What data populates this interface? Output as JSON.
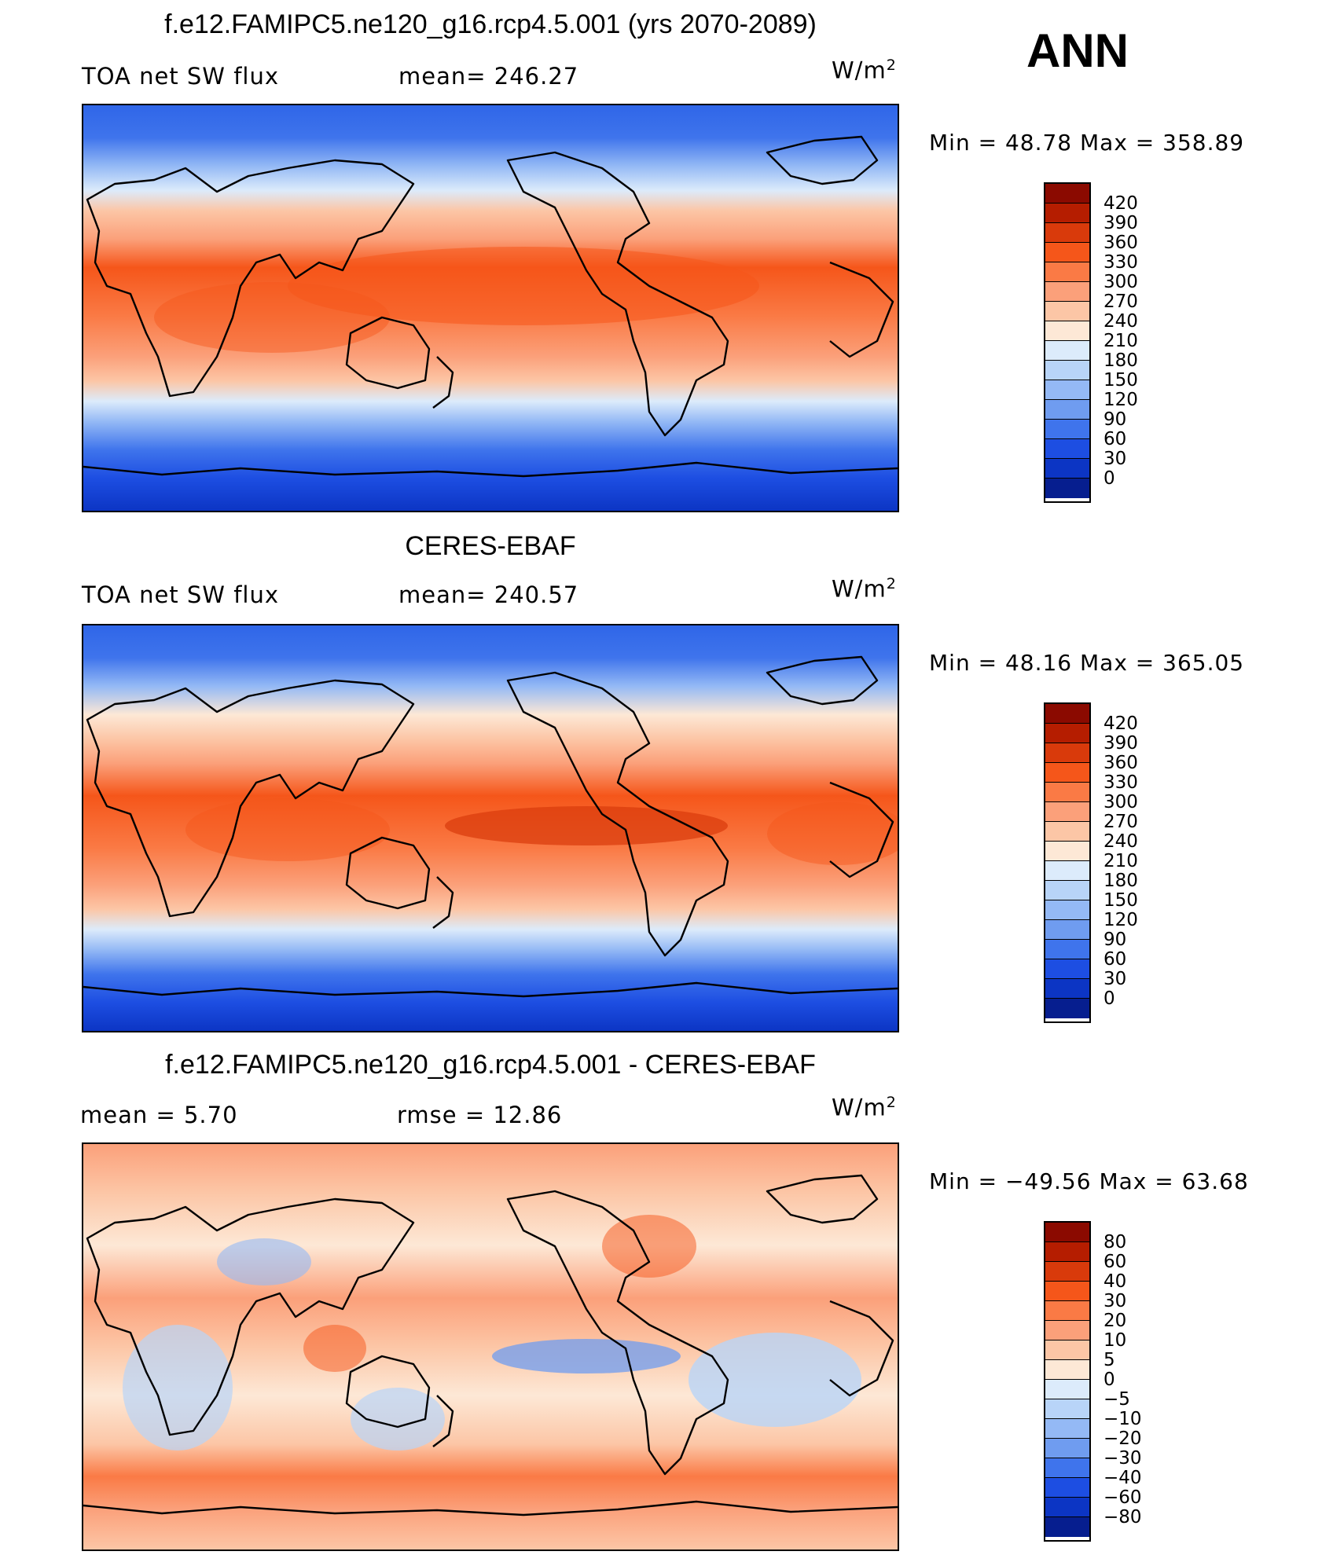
{
  "season": "ANN",
  "scale_abs": {
    "labels": [
      "420",
      "390",
      "360",
      "330",
      "300",
      "270",
      "240",
      "210",
      "180",
      "150",
      "120",
      "90",
      "60",
      "30",
      "0"
    ],
    "colors": [
      "#8b0a00",
      "#b51d00",
      "#d93a0b",
      "#f5561a",
      "#fa7a45",
      "#fba07a",
      "#fcc6a6",
      "#fde8d6",
      "#dcebfb",
      "#b8d4f8",
      "#94b9f5",
      "#6f9cf0",
      "#3f74ec",
      "#1d4ee2",
      "#0c35c4",
      "#061e8f"
    ]
  },
  "scale_diff": {
    "labels": [
      "80",
      "60",
      "40",
      "30",
      "20",
      "10",
      "5",
      "0",
      "−5",
      "−10",
      "−20",
      "−30",
      "−40",
      "−60",
      "−80"
    ],
    "colors": [
      "#8b0a00",
      "#b51d00",
      "#d93a0b",
      "#f5561a",
      "#fa7a45",
      "#fba07a",
      "#fcc6a6",
      "#fde8d6",
      "#dcebfb",
      "#b8d4f8",
      "#94b9f5",
      "#6f9cf0",
      "#3f74ec",
      "#1d4ee2",
      "#0c35c4",
      "#061e8f"
    ]
  },
  "panels": [
    {
      "title": "f.e12.FAMIPC5.ne120_g16.rcp4.5.001 (yrs 2070-2089)",
      "left_label": "TOA net SW flux",
      "stat_label": "mean= 246.27",
      "units": "W/m",
      "units_sup": "2",
      "minmax": "Min  =   48.78  Max  =  358.89"
    },
    {
      "title": "CERES-EBAF",
      "left_label": "TOA net SW flux",
      "stat_label": "mean= 240.57",
      "units": "W/m",
      "units_sup": "2",
      "minmax": "Min  =   48.16  Max  =  365.05"
    },
    {
      "title": "f.e12.FAMIPC5.ne120_g16.rcp4.5.001 - CERES-EBAF",
      "left_label": "mean  =      5.70",
      "stat_label": "rmse  =     12.86",
      "units": "W/m",
      "units_sup": "2",
      "minmax": "Min  = −49.56  Max  =    63.68"
    }
  ],
  "chart_data": [
    {
      "type": "heatmap",
      "title": "f.e12.FAMIPC5.ne120_g16.rcp4.5.001 (yrs 2070-2089)",
      "variable": "TOA net SW flux",
      "mean": 246.27,
      "min": 48.78,
      "max": 358.89,
      "units": "W/m2",
      "levels": [
        0,
        30,
        60,
        90,
        120,
        150,
        180,
        210,
        240,
        270,
        300,
        330,
        360,
        390,
        420
      ]
    },
    {
      "type": "heatmap",
      "title": "CERES-EBAF",
      "variable": "TOA net SW flux",
      "mean": 240.57,
      "min": 48.16,
      "max": 365.05,
      "units": "W/m2",
      "levels": [
        0,
        30,
        60,
        90,
        120,
        150,
        180,
        210,
        240,
        270,
        300,
        330,
        360,
        390,
        420
      ]
    },
    {
      "type": "heatmap",
      "title": "f.e12.FAMIPC5.ne120_g16.rcp4.5.001 - CERES-EBAF",
      "mean": 5.7,
      "rmse": 12.86,
      "min": -49.56,
      "max": 63.68,
      "units": "W/m2",
      "levels": [
        -80,
        -60,
        -40,
        -30,
        -20,
        -10,
        -5,
        0,
        5,
        10,
        20,
        30,
        40,
        60,
        80
      ]
    }
  ]
}
